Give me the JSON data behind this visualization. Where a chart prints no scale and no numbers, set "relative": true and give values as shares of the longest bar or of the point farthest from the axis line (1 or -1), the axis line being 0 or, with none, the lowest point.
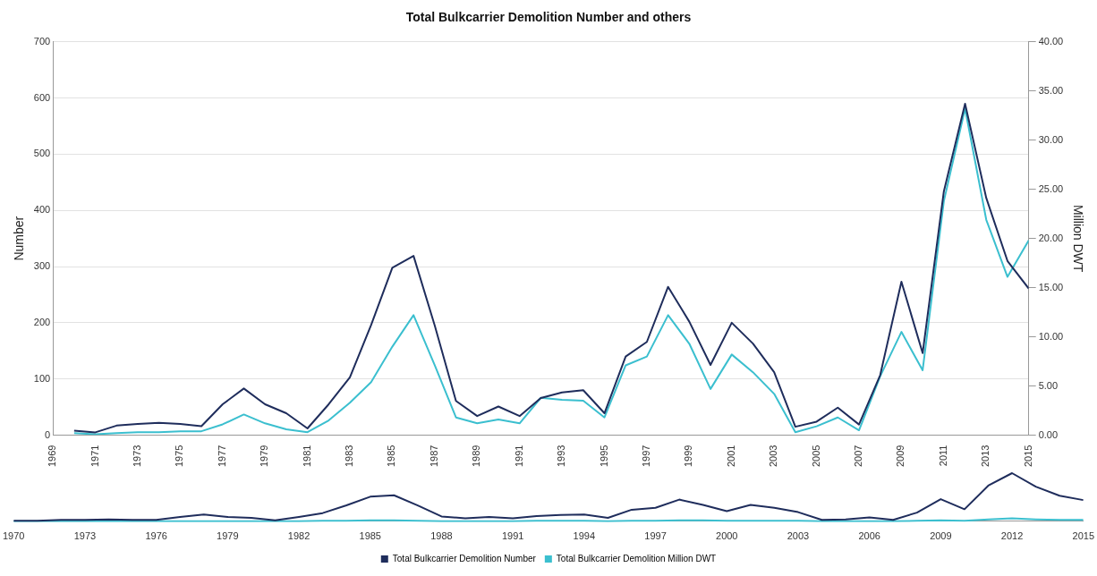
{
  "chart_data": [
    {
      "type": "line",
      "title": "Total Bulkcarrier Demolition Number and others",
      "ylabel": "Number",
      "y2label": "Million DWT",
      "x": [
        1970,
        1971,
        1972,
        1973,
        1974,
        1975,
        1976,
        1977,
        1978,
        1979,
        1980,
        1981,
        1982,
        1983,
        1984,
        1985,
        1986,
        1987,
        1988,
        1989,
        1990,
        1991,
        1992,
        1993,
        1994,
        1995,
        1996,
        1997,
        1998,
        1999,
        2000,
        2001,
        2002,
        2003,
        2004,
        2005,
        2006,
        2007,
        2008,
        2009,
        2010,
        2011,
        2012,
        2013,
        2014,
        2015
      ],
      "series": [
        {
          "color": "#1f2d5c",
          "values": [
            8,
            5,
            17,
            20,
            22,
            20,
            16,
            55,
            83,
            55,
            39,
            12,
            55,
            103,
            196,
            298,
            319,
            195,
            61,
            34,
            51,
            34,
            66,
            76,
            80,
            39,
            140,
            166,
            264,
            202,
            125,
            200,
            163,
            112,
            15,
            24,
            49,
            19,
            107,
            273,
            146,
            434,
            590,
            422,
            310,
            261
          ]
        },
        {
          "color": "#3bbfcf",
          "axis": "y2",
          "values": [
            0.2,
            0.1,
            0.2,
            0.3,
            0.3,
            0.4,
            0.4,
            1.1,
            2.1,
            1.2,
            0.6,
            0.3,
            1.5,
            3.3,
            5.4,
            9.0,
            12.2,
            7.1,
            1.8,
            1.2,
            1.6,
            1.2,
            3.8,
            3.6,
            3.5,
            1.8,
            7.1,
            8.0,
            12.2,
            9.3,
            4.7,
            8.2,
            6.4,
            4.2,
            0.3,
            0.9,
            1.8,
            0.5,
            6.0,
            10.5,
            6.6,
            23.8,
            33.2,
            21.9,
            16.1,
            19.8
          ]
        }
      ],
      "xlim": [
        1969,
        2015
      ],
      "xticks": [
        1969,
        1971,
        1973,
        1975,
        1977,
        1979,
        1981,
        1983,
        1985,
        1987,
        1989,
        1991,
        1993,
        1995,
        1997,
        1999,
        2001,
        2003,
        2005,
        2007,
        2009,
        2011,
        2013,
        2015
      ],
      "ylim": [
        0,
        700
      ],
      "yticks": [
        0,
        100,
        200,
        300,
        400,
        500,
        600,
        700
      ],
      "y2lim": [
        0,
        40
      ],
      "y2ticks": [
        {
          "value": 0,
          "label": "0.00"
        },
        {
          "value": 5,
          "label": "5.00"
        },
        {
          "value": 10,
          "label": "10.00"
        },
        {
          "value": 15,
          "label": "15.00"
        },
        {
          "value": 20,
          "label": "20.00"
        },
        {
          "value": 25,
          "label": "25.00"
        },
        {
          "value": 30,
          "label": "30.00"
        },
        {
          "value": 35,
          "label": "35.00"
        },
        {
          "value": 40,
          "label": "40.00"
        }
      ],
      "grid": "y",
      "legend": false,
      "marker": "none",
      "line_style": "solid"
    },
    {
      "type": "line",
      "relative": true,
      "x": [
        1970,
        1971,
        1972,
        1973,
        1974,
        1975,
        1976,
        1977,
        1978,
        1979,
        1980,
        1981,
        1982,
        1983,
        1984,
        1985,
        1986,
        1987,
        1988,
        1989,
        1990,
        1991,
        1992,
        1993,
        1994,
        1995,
        1996,
        1997,
        1998,
        1999,
        2000,
        2001,
        2002,
        2003,
        2004,
        2005,
        2006,
        2007,
        2008,
        2009,
        2010,
        2011,
        2012,
        2013,
        2014,
        2015
      ],
      "series": [
        {
          "name": "Total Bulkcarrier Demolition Number",
          "color": "#1f2d5c",
          "values": [
            0.01,
            0.01,
            0.03,
            0.03,
            0.04,
            0.03,
            0.03,
            0.09,
            0.14,
            0.09,
            0.07,
            0.02,
            0.09,
            0.17,
            0.33,
            0.51,
            0.54,
            0.33,
            0.1,
            0.06,
            0.09,
            0.06,
            0.11,
            0.13,
            0.14,
            0.07,
            0.24,
            0.28,
            0.45,
            0.34,
            0.21,
            0.34,
            0.28,
            0.19,
            0.03,
            0.04,
            0.08,
            0.03,
            0.18,
            0.46,
            0.25,
            0.74,
            1,
            0.72,
            0.53,
            0.44
          ]
        },
        {
          "name": "Total Bulkcarrier Demolition Million DWT",
          "color": "#3bbfcf",
          "values": [
            0,
            0,
            0,
            0,
            0,
            0,
            0,
            0,
            0,
            0,
            0,
            0,
            0,
            0.01,
            0.01,
            0.02,
            0.02,
            0.01,
            0,
            0,
            0,
            0,
            0.01,
            0.01,
            0.01,
            0,
            0.01,
            0.01,
            0.02,
            0.02,
            0.01,
            0.01,
            0.01,
            0.01,
            0,
            0,
            0,
            0,
            0.01,
            0.02,
            0.01,
            0.04,
            0.06,
            0.04,
            0.03,
            0.03
          ]
        }
      ],
      "xlim": [
        1970,
        2015
      ],
      "xticks": [
        1970,
        1973,
        1976,
        1979,
        1982,
        1985,
        1988,
        1991,
        1994,
        1997,
        2000,
        2003,
        2006,
        2009,
        2012,
        2015
      ],
      "legend": "bottom",
      "marker": "none",
      "line_style": "solid"
    }
  ]
}
